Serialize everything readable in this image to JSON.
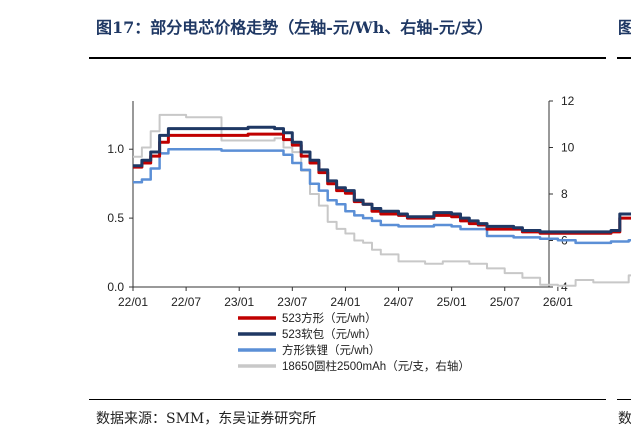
{
  "header": {
    "title": "图17：部分电芯价格走势（左轴-元/Wh、右轴-元/支）",
    "next_column_glyph": "图"
  },
  "footer": {
    "source": "数据来源：SMM，东吴证券研究所",
    "next_column_glyph": "数"
  },
  "chart_data": {
    "type": "line",
    "x_tick_labels": [
      "22/01",
      "22/07",
      "23/01",
      "23/07",
      "24/01",
      "24/07",
      "25/01",
      "25/07",
      "26/01"
    ],
    "left_axis": {
      "ylim": [
        0.0,
        1.35
      ],
      "ticks": [
        "0.0",
        "0.5",
        "1.0"
      ],
      "unit": "元/wh"
    },
    "right_axis": {
      "ylim": [
        4,
        12
      ],
      "ticks": [
        "4",
        "6",
        "8",
        "10",
        "12"
      ],
      "unit": "元/支"
    },
    "legend_position": "bottom-left",
    "grid": false,
    "series": [
      {
        "name": "523方形（元/wh）",
        "axis": "left",
        "color": "#c00000",
        "points": [
          [
            0,
            0.87
          ],
          [
            1,
            0.9
          ],
          [
            2,
            0.95
          ],
          [
            3,
            1.05
          ],
          [
            4,
            1.1
          ],
          [
            6,
            1.1
          ],
          [
            12,
            1.1
          ],
          [
            13,
            1.11
          ],
          [
            16,
            1.11
          ],
          [
            17,
            1.07
          ],
          [
            18,
            1.03
          ],
          [
            19,
            0.95
          ],
          [
            20,
            0.9
          ],
          [
            21,
            0.83
          ],
          [
            22,
            0.75
          ],
          [
            23,
            0.7
          ],
          [
            24,
            0.68
          ],
          [
            25,
            0.62
          ],
          [
            26,
            0.6
          ],
          [
            27,
            0.55
          ],
          [
            28,
            0.53
          ],
          [
            30,
            0.52
          ],
          [
            31,
            0.5
          ],
          [
            33,
            0.5
          ],
          [
            34,
            0.52
          ],
          [
            36,
            0.51
          ],
          [
            37,
            0.48
          ],
          [
            38,
            0.46
          ],
          [
            39,
            0.45
          ],
          [
            40,
            0.42
          ],
          [
            43,
            0.42
          ],
          [
            44,
            0.4
          ],
          [
            46,
            0.39
          ],
          [
            50,
            0.39
          ],
          [
            53,
            0.39
          ],
          [
            54,
            0.4
          ],
          [
            55,
            0.5
          ],
          [
            57,
            0.51
          ],
          [
            59,
            0.52
          ]
        ]
      },
      {
        "name": "523软包（元/wh）",
        "axis": "left",
        "color": "#1f3864",
        "points": [
          [
            0,
            0.88
          ],
          [
            1,
            0.92
          ],
          [
            2,
            0.98
          ],
          [
            3,
            1.1
          ],
          [
            4,
            1.15
          ],
          [
            6,
            1.15
          ],
          [
            12,
            1.15
          ],
          [
            13,
            1.16
          ],
          [
            16,
            1.15
          ],
          [
            17,
            1.12
          ],
          [
            18,
            1.05
          ],
          [
            19,
            0.98
          ],
          [
            20,
            0.92
          ],
          [
            21,
            0.85
          ],
          [
            22,
            0.77
          ],
          [
            23,
            0.72
          ],
          [
            24,
            0.7
          ],
          [
            25,
            0.63
          ],
          [
            26,
            0.6
          ],
          [
            27,
            0.57
          ],
          [
            28,
            0.55
          ],
          [
            30,
            0.53
          ],
          [
            31,
            0.51
          ],
          [
            33,
            0.51
          ],
          [
            34,
            0.54
          ],
          [
            36,
            0.53
          ],
          [
            37,
            0.5
          ],
          [
            38,
            0.48
          ],
          [
            39,
            0.46
          ],
          [
            40,
            0.44
          ],
          [
            43,
            0.43
          ],
          [
            44,
            0.41
          ],
          [
            46,
            0.4
          ],
          [
            50,
            0.4
          ],
          [
            53,
            0.4
          ],
          [
            54,
            0.41
          ],
          [
            55,
            0.53
          ],
          [
            57,
            0.53
          ],
          [
            59,
            0.54
          ]
        ]
      },
      {
        "name": "方形铁锂（元/wh）",
        "axis": "left",
        "color": "#5b8fd6",
        "points": [
          [
            0,
            0.76
          ],
          [
            1,
            0.78
          ],
          [
            2,
            0.86
          ],
          [
            3,
            0.97
          ],
          [
            4,
            1.0
          ],
          [
            6,
            1.0
          ],
          [
            9,
            1.0
          ],
          [
            10,
            0.99
          ],
          [
            13,
            0.99
          ],
          [
            16,
            0.99
          ],
          [
            17,
            0.96
          ],
          [
            18,
            0.9
          ],
          [
            19,
            0.85
          ],
          [
            20,
            0.75
          ],
          [
            21,
            0.7
          ],
          [
            22,
            0.63
          ],
          [
            23,
            0.6
          ],
          [
            24,
            0.55
          ],
          [
            25,
            0.52
          ],
          [
            26,
            0.5
          ],
          [
            27,
            0.48
          ],
          [
            28,
            0.45
          ],
          [
            30,
            0.44
          ],
          [
            33,
            0.44
          ],
          [
            34,
            0.45
          ],
          [
            36,
            0.44
          ],
          [
            37,
            0.42
          ],
          [
            40,
            0.37
          ],
          [
            43,
            0.36
          ],
          [
            46,
            0.35
          ],
          [
            48,
            0.34
          ],
          [
            50,
            0.32
          ],
          [
            53,
            0.32
          ],
          [
            54,
            0.33
          ],
          [
            56,
            0.34
          ],
          [
            59,
            0.35
          ]
        ]
      },
      {
        "name": "18650圆柱2500mAh（元/支，右轴）",
        "axis": "right",
        "color": "#c8c8c8",
        "points": [
          [
            0,
            9.6
          ],
          [
            1,
            10.0
          ],
          [
            2,
            10.7
          ],
          [
            3,
            11.4
          ],
          [
            4,
            11.4
          ],
          [
            6,
            11.3
          ],
          [
            9,
            11.3
          ],
          [
            10,
            10.3
          ],
          [
            13,
            10.3
          ],
          [
            16,
            10.4
          ],
          [
            17,
            10.0
          ],
          [
            18,
            9.8
          ],
          [
            19,
            9.0
          ],
          [
            20,
            8.0
          ],
          [
            21,
            7.5
          ],
          [
            22,
            6.8
          ],
          [
            23,
            6.5
          ],
          [
            24,
            6.3
          ],
          [
            25,
            6.0
          ],
          [
            26,
            5.9
          ],
          [
            27,
            5.6
          ],
          [
            28,
            5.4
          ],
          [
            30,
            5.1
          ],
          [
            32,
            5.1
          ],
          [
            33,
            5.0
          ],
          [
            34,
            5.0
          ],
          [
            35,
            5.1
          ],
          [
            37,
            5.1
          ],
          [
            38,
            5.0
          ],
          [
            39,
            5.0
          ],
          [
            40,
            4.8
          ],
          [
            42,
            4.6
          ],
          [
            44,
            4.4
          ],
          [
            46,
            4.1
          ],
          [
            48,
            4.05
          ],
          [
            50,
            4.3
          ],
          [
            52,
            4.2
          ],
          [
            54,
            4.2
          ],
          [
            56,
            4.5
          ],
          [
            57,
            4.6
          ],
          [
            59,
            4.8
          ]
        ]
      }
    ]
  }
}
